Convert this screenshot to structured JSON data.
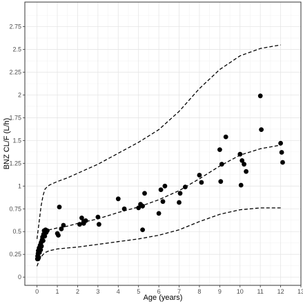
{
  "chart_data": {
    "type": "scatter",
    "title": "",
    "xlabel": "Age (years)",
    "ylabel": "BNZ CL/F (L/h)",
    "xlim": [
      -0.6,
      13.0
    ],
    "ylim": [
      -0.09,
      3.02
    ],
    "xticks": [
      0,
      1,
      2,
      3,
      4,
      5,
      6,
      7,
      8,
      9,
      10,
      11,
      12,
      13
    ],
    "yticks": [
      0,
      0.25,
      0.5,
      0.75,
      1,
      1.25,
      1.5,
      1.75,
      2,
      2.25,
      2.5,
      2.75
    ],
    "ytick_labels": [
      "0",
      "0.25",
      "0.5",
      "0.75",
      "1",
      "1.25",
      "1.5",
      "1.75",
      "2",
      "2.25",
      "2.5",
      "2.75"
    ],
    "grid": true,
    "marker_color": "#000000",
    "line_color": "#000000",
    "points": [
      {
        "x": 0.02,
        "y": 0.2
      },
      {
        "x": 0.03,
        "y": 0.23
      },
      {
        "x": 0.05,
        "y": 0.26
      },
      {
        "x": 0.06,
        "y": 0.29
      },
      {
        "x": 0.08,
        "y": 0.22
      },
      {
        "x": 0.1,
        "y": 0.32
      },
      {
        "x": 0.12,
        "y": 0.27
      },
      {
        "x": 0.15,
        "y": 0.35
      },
      {
        "x": 0.18,
        "y": 0.3
      },
      {
        "x": 0.2,
        "y": 0.38
      },
      {
        "x": 0.22,
        "y": 0.34
      },
      {
        "x": 0.25,
        "y": 0.41
      },
      {
        "x": 0.27,
        "y": 0.44
      },
      {
        "x": 0.3,
        "y": 0.4
      },
      {
        "x": 0.32,
        "y": 0.47
      },
      {
        "x": 0.35,
        "y": 0.51
      },
      {
        "x": 0.38,
        "y": 0.45
      },
      {
        "x": 0.42,
        "y": 0.52
      },
      {
        "x": 0.45,
        "y": 0.49
      },
      {
        "x": 0.5,
        "y": 0.51
      },
      {
        "x": 1.0,
        "y": 0.48
      },
      {
        "x": 1.05,
        "y": 0.46
      },
      {
        "x": 1.1,
        "y": 0.77
      },
      {
        "x": 1.2,
        "y": 0.53
      },
      {
        "x": 1.3,
        "y": 0.57
      },
      {
        "x": 2.1,
        "y": 0.58
      },
      {
        "x": 2.2,
        "y": 0.65
      },
      {
        "x": 2.3,
        "y": 0.61
      },
      {
        "x": 2.3,
        "y": 0.59
      },
      {
        "x": 2.4,
        "y": 0.62
      },
      {
        "x": 3.0,
        "y": 0.66
      },
      {
        "x": 3.05,
        "y": 0.58
      },
      {
        "x": 4.0,
        "y": 0.86
      },
      {
        "x": 4.3,
        "y": 0.75
      },
      {
        "x": 5.0,
        "y": 0.76
      },
      {
        "x": 5.1,
        "y": 0.8
      },
      {
        "x": 5.2,
        "y": 0.78
      },
      {
        "x": 5.2,
        "y": 0.52
      },
      {
        "x": 5.3,
        "y": 0.92
      },
      {
        "x": 6.0,
        "y": 0.7
      },
      {
        "x": 6.1,
        "y": 0.96
      },
      {
        "x": 6.2,
        "y": 0.83
      },
      {
        "x": 6.3,
        "y": 1.0
      },
      {
        "x": 7.0,
        "y": 0.82
      },
      {
        "x": 7.05,
        "y": 0.92
      },
      {
        "x": 7.3,
        "y": 0.99
      },
      {
        "x": 8.0,
        "y": 1.12
      },
      {
        "x": 8.1,
        "y": 1.04
      },
      {
        "x": 9.0,
        "y": 1.4
      },
      {
        "x": 9.05,
        "y": 1.05
      },
      {
        "x": 9.1,
        "y": 1.24
      },
      {
        "x": 9.3,
        "y": 1.54
      },
      {
        "x": 10.0,
        "y": 1.35
      },
      {
        "x": 10.05,
        "y": 1.01
      },
      {
        "x": 10.1,
        "y": 1.28
      },
      {
        "x": 10.2,
        "y": 1.24
      },
      {
        "x": 10.3,
        "y": 1.16
      },
      {
        "x": 11.0,
        "y": 1.99
      },
      {
        "x": 11.05,
        "y": 1.62
      },
      {
        "x": 12.0,
        "y": 1.47
      },
      {
        "x": 12.05,
        "y": 1.37
      },
      {
        "x": 12.1,
        "y": 1.26
      }
    ],
    "series": [
      {
        "style": "dashed",
        "x": [
          0,
          0.1,
          0.2,
          0.3,
          0.4,
          0.6,
          0.8,
          1,
          1.5,
          2,
          3,
          4,
          5,
          6,
          7,
          8,
          9,
          10,
          11,
          12
        ],
        "values": [
          0.42,
          0.6,
          0.78,
          0.9,
          0.97,
          1.01,
          1.03,
          1.05,
          1.09,
          1.14,
          1.24,
          1.36,
          1.48,
          1.62,
          1.82,
          2.07,
          2.28,
          2.43,
          2.51,
          2.55
        ]
      },
      {
        "style": "dashed",
        "x": [
          0,
          0.1,
          0.2,
          0.3,
          0.4,
          0.6,
          0.8,
          1,
          1.5,
          2,
          3,
          4,
          5,
          6,
          7,
          8,
          9,
          10,
          11,
          12
        ],
        "values": [
          0.26,
          0.36,
          0.44,
          0.48,
          0.5,
          0.52,
          0.53,
          0.54,
          0.56,
          0.59,
          0.64,
          0.71,
          0.77,
          0.85,
          0.95,
          1.08,
          1.22,
          1.34,
          1.41,
          1.45
        ]
      },
      {
        "style": "dashed",
        "x": [
          0,
          0.1,
          0.2,
          0.3,
          0.4,
          0.6,
          0.8,
          1,
          1.5,
          2,
          3,
          4,
          5,
          6,
          7,
          8,
          9,
          10,
          11,
          12
        ],
        "values": [
          0.12,
          0.18,
          0.22,
          0.25,
          0.27,
          0.29,
          0.3,
          0.31,
          0.32,
          0.33,
          0.36,
          0.39,
          0.42,
          0.46,
          0.52,
          0.61,
          0.69,
          0.74,
          0.76,
          0.76
        ]
      }
    ]
  }
}
